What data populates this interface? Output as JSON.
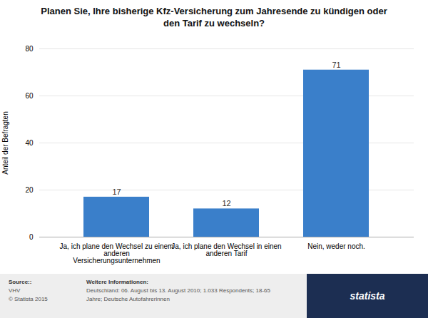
{
  "chart_data": {
    "type": "bar",
    "title": "Planen Sie, Ihre bisherige Kfz-Versicherung zum Jahresende zu kündigen oder\nden Tarif zu wechseln?",
    "categories": [
      "Ja, ich plane den Wechsel zu einem\nanderen\nVersicherungsunternehmen",
      "Ja, ich plane den Wechsel in einen\nanderen Tarif",
      "Nein, weder noch."
    ],
    "values": [
      17,
      12,
      71
    ],
    "color": "#3a7fca",
    "ylabel": "Anteil der Befragten",
    "ylim": [
      0,
      80
    ],
    "yticks": [
      0,
      20,
      40,
      60,
      80
    ],
    "grid": true,
    "data_labels": true,
    "annotations": [
      "Source::",
      "VHV\n© Statista 2015",
      "Weitere Informationen:",
      "Deutschland: 06. August bis 13. August 2010; 1.033 Respondents; 18-65\nJahre; Deutsche Autofahrerinnen",
      "statista"
    ]
  }
}
